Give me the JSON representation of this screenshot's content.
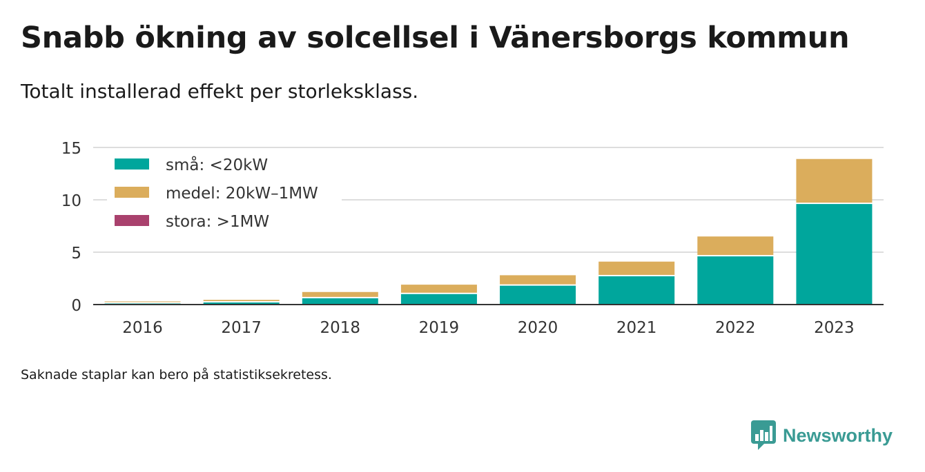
{
  "title": "Snabb ökning av solcellsel i Vänersborgs kommun",
  "subtitle": "Totalt installerad effekt per storleksklass.",
  "note": "Saknade staplar kan bero på statistiksekretess.",
  "brand": {
    "name": "Newsworthy"
  },
  "colors": {
    "small": "#00a69c",
    "medium": "#dbad5c",
    "large": "#a9416d",
    "grid": "#dddddd",
    "axis": "#333333"
  },
  "chart_data": {
    "type": "bar",
    "stacked": true,
    "categories": [
      "2016",
      "2017",
      "2018",
      "2019",
      "2020",
      "2021",
      "2022",
      "2023"
    ],
    "series": [
      {
        "name": "små: <20kW",
        "values": [
          0.1,
          0.2,
          0.6,
          1.0,
          1.8,
          2.7,
          4.6,
          9.6
        ]
      },
      {
        "name": "medel: 20kW–1MW",
        "values": [
          0.2,
          0.25,
          0.6,
          0.9,
          1.0,
          1.4,
          1.9,
          4.3
        ]
      },
      {
        "name": "stora: >1MW",
        "values": [
          0,
          0,
          0,
          0,
          0,
          0,
          0,
          0
        ]
      }
    ],
    "yticks": [
      0,
      5,
      10,
      15
    ],
    "ylim": [
      0,
      15
    ],
    "grid": true,
    "legend_position": "top-left"
  }
}
